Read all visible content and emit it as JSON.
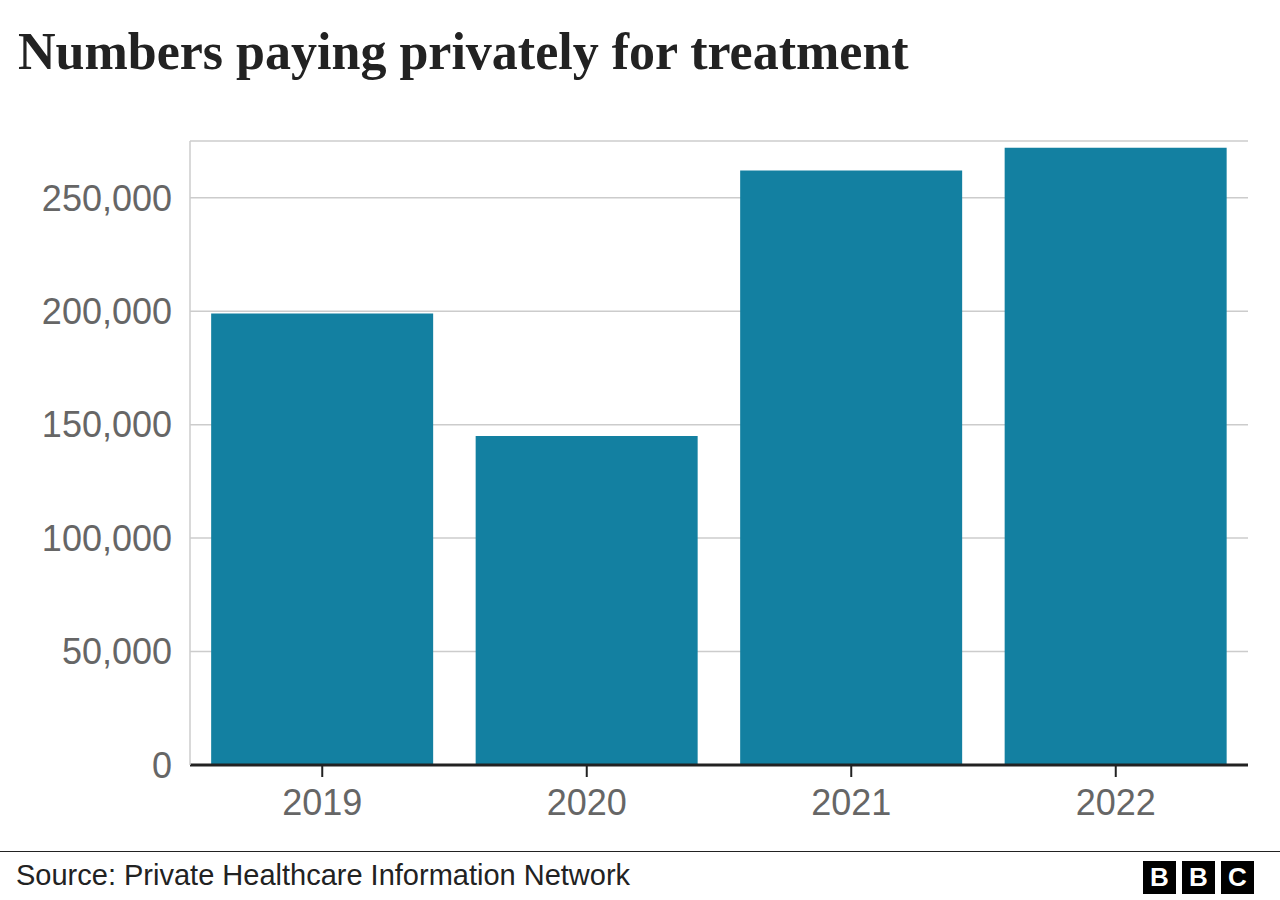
{
  "chart_data": {
    "type": "bar",
    "title": "Numbers paying privately for treatment",
    "source": "Source: Private Healthcare Information Network",
    "logo": "BBC",
    "categories": [
      "2019",
      "2020",
      "2021",
      "2022"
    ],
    "values": [
      199000,
      145000,
      262000,
      272000
    ],
    "color": "#1380a1",
    "ylim": [
      0,
      275000
    ],
    "yticks": [
      0,
      {
        "value": 50000,
        "label": "50,000"
      },
      {
        "value": 100000,
        "label": "100,000"
      },
      {
        "value": 150000,
        "label": "150,000"
      },
      {
        "value": 200000,
        "label": "200,000"
      },
      {
        "value": 250000,
        "label": "250,000"
      }
    ],
    "grid": true
  }
}
